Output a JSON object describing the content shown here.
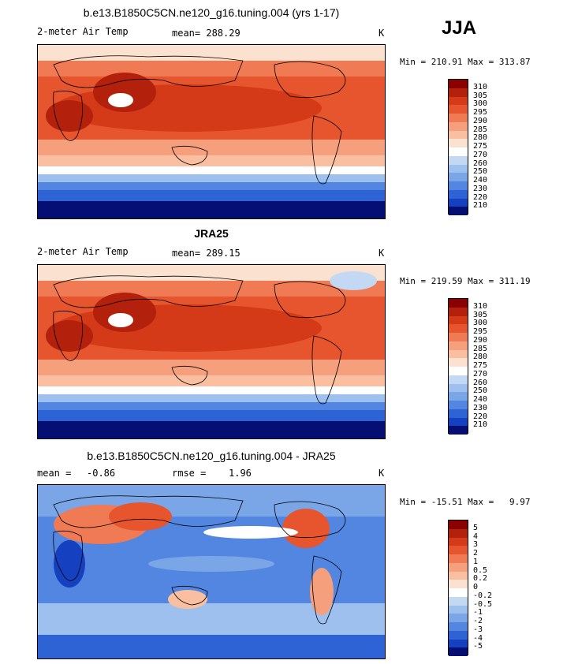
{
  "season": "JJA",
  "colors": {
    "warm": [
      "#fbe1cf",
      "#f9bfa0",
      "#f59f7c",
      "#ef7a54",
      "#e6552e",
      "#d43a17",
      "#b3200c",
      "#8b0000"
    ],
    "cold": [
      "#e6f0fb",
      "#c2d8f3",
      "#9ec0ee",
      "#7aa6e8",
      "#5286e0",
      "#2e63d6",
      "#1540c0",
      "#08249c",
      "#040e73"
    ],
    "white": "#ffffff"
  },
  "panels": [
    {
      "title": "b.e13.B1850C5CN.ne120_g16.tuning.004 (yrs 1-17)",
      "variable": "2-meter Air Temp",
      "stat": "mean= 288.29",
      "units": "K",
      "minmax": "Min = 210.91 Max = 313.87",
      "levels": [
        "310",
        "305",
        "300",
        "295",
        "290",
        "285",
        "280",
        "275",
        "270",
        "260",
        "250",
        "240",
        "230",
        "220",
        "210"
      ],
      "colors": [
        "#8b0000",
        "#b3200c",
        "#d43a17",
        "#e6552e",
        "#ef7a54",
        "#f59f7c",
        "#f9bfa0",
        "#fbe1cf",
        "#ffffff",
        "#c2d8f3",
        "#9ec0ee",
        "#7aa6e8",
        "#5286e0",
        "#2e63d6",
        "#1540c0",
        "#040e73"
      ]
    },
    {
      "title": "JRA25",
      "variable": "2-meter Air Temp",
      "stat": "mean= 289.15",
      "units": "K",
      "minmax": "Min = 219.59 Max = 311.19",
      "levels": [
        "310",
        "305",
        "300",
        "295",
        "290",
        "285",
        "280",
        "275",
        "270",
        "260",
        "250",
        "240",
        "230",
        "220",
        "210"
      ],
      "colors": [
        "#8b0000",
        "#b3200c",
        "#d43a17",
        "#e6552e",
        "#ef7a54",
        "#f59f7c",
        "#f9bfa0",
        "#fbe1cf",
        "#ffffff",
        "#c2d8f3",
        "#9ec0ee",
        "#7aa6e8",
        "#5286e0",
        "#2e63d6",
        "#1540c0",
        "#040e73"
      ]
    },
    {
      "title": "b.e13.B1850C5CN.ne120_g16.tuning.004 - JRA25",
      "variable": "mean =",
      "variable_value": "-0.86",
      "stat": "rmse =",
      "stat_value": "1.96",
      "units": "K",
      "minmax_label": "Min = -15.51 Max =",
      "minmax_value": "9.97",
      "levels": [
        "5",
        "4",
        "3",
        "2",
        "1",
        "0.5",
        "0.2",
        "0",
        "-0.2",
        "-0.5",
        "-1",
        "-2",
        "-3",
        "-4",
        "-5"
      ],
      "colors": [
        "#8b0000",
        "#b3200c",
        "#d43a17",
        "#e6552e",
        "#ef7a54",
        "#f59f7c",
        "#f9bfa0",
        "#fbe1cf",
        "#ffffff",
        "#c2d8f3",
        "#9ec0ee",
        "#7aa6e8",
        "#5286e0",
        "#2e63d6",
        "#1540c0",
        "#040e73"
      ]
    }
  ]
}
